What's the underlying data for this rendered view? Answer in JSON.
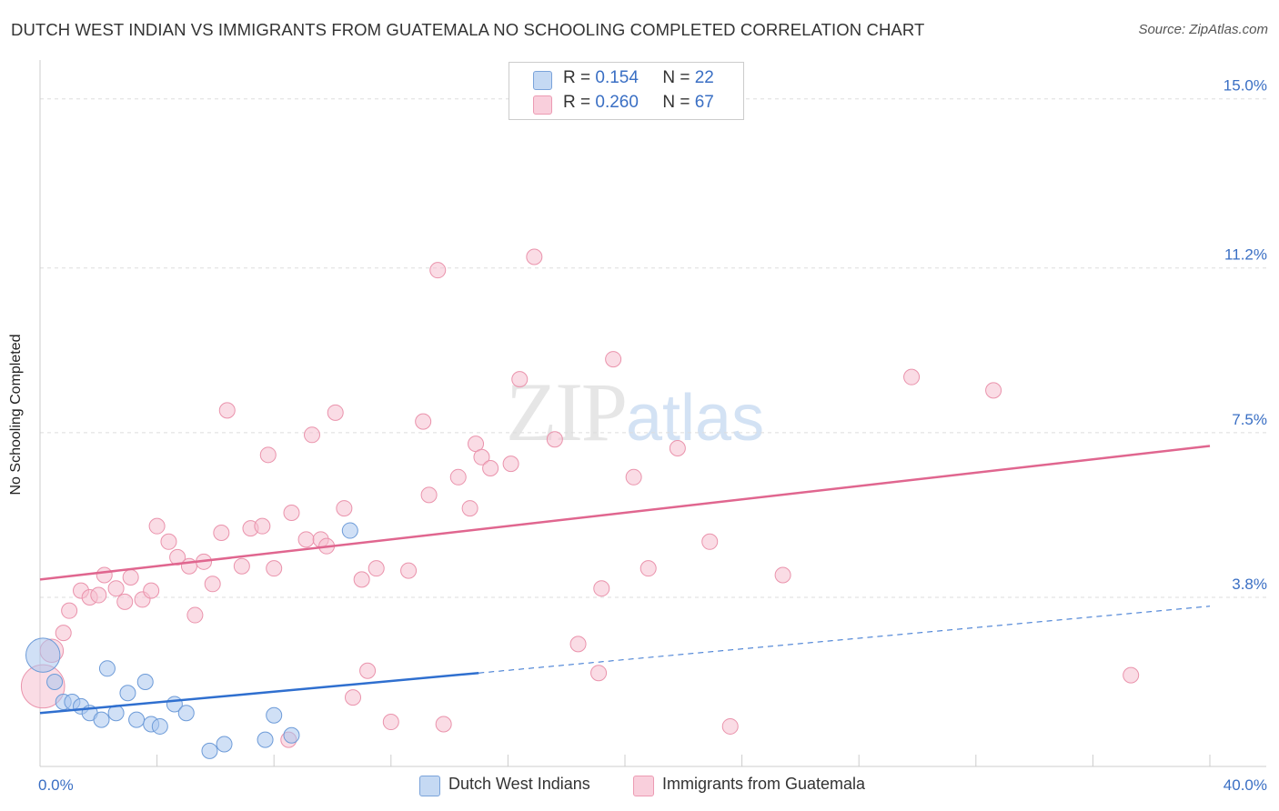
{
  "header": {
    "title": "DUTCH WEST INDIAN VS IMMIGRANTS FROM GUATEMALA NO SCHOOLING COMPLETED CORRELATION CHART",
    "source": "Source: ZipAtlas.com"
  },
  "watermark": {
    "zip": "ZIP",
    "atlas": "atlas"
  },
  "legend": {
    "r_label": "R =",
    "n_label": "N =",
    "series": [
      {
        "r": "0.154",
        "n": "22"
      },
      {
        "r": "0.260",
        "n": "67"
      }
    ]
  },
  "chart_data": {
    "type": "scatter",
    "title": "DUTCH WEST INDIAN VS IMMIGRANTS FROM GUATEMALA NO SCHOOLING COMPLETED CORRELATION CHART",
    "xlabel": "",
    "ylabel": "No Schooling Completed",
    "xlim": [
      0,
      40
    ],
    "ylim": [
      0,
      15.75
    ],
    "x_tick_labels": [
      "0.0%",
      "40.0%"
    ],
    "y_ticks": [
      3.8,
      7.5,
      11.2,
      15.0
    ],
    "y_tick_labels": [
      "3.8%",
      "7.5%",
      "11.2%",
      "15.0%"
    ],
    "colors": {
      "blue_fill": "#a9c7ee",
      "blue_stroke": "#6d9bd8",
      "blue_line": "#2f6fcf",
      "pink_fill": "#f6bfcf",
      "pink_stroke": "#ea93ac",
      "pink_line": "#e0668f",
      "grid": "#dddddd",
      "tick_label": "#3a6fc4"
    },
    "series": [
      {
        "name": "Dutch West Indians",
        "r": 0.154,
        "n": 22,
        "trend": {
          "x0": 0,
          "y0": 1.2,
          "x1": 15,
          "y1": 2.1,
          "dash_to_x": 40,
          "dash_to_y": 3.6
        },
        "points": [
          {
            "x": 0.1,
            "y": 2.5,
            "s": 2.2
          },
          {
            "x": 0.5,
            "y": 1.9,
            "s": 1
          },
          {
            "x": 0.8,
            "y": 1.45,
            "s": 1
          },
          {
            "x": 1.1,
            "y": 1.45,
            "s": 1
          },
          {
            "x": 1.4,
            "y": 1.35,
            "s": 1
          },
          {
            "x": 1.7,
            "y": 1.2,
            "s": 1
          },
          {
            "x": 2.1,
            "y": 1.05,
            "s": 1
          },
          {
            "x": 2.3,
            "y": 2.2,
            "s": 1
          },
          {
            "x": 2.6,
            "y": 1.2,
            "s": 1
          },
          {
            "x": 3.0,
            "y": 1.65,
            "s": 1
          },
          {
            "x": 3.3,
            "y": 1.05,
            "s": 1
          },
          {
            "x": 3.6,
            "y": 1.9,
            "s": 1
          },
          {
            "x": 3.8,
            "y": 0.95,
            "s": 1
          },
          {
            "x": 4.1,
            "y": 0.9,
            "s": 1
          },
          {
            "x": 4.6,
            "y": 1.4,
            "s": 1
          },
          {
            "x": 5.0,
            "y": 1.2,
            "s": 1
          },
          {
            "x": 5.8,
            "y": 0.35,
            "s": 1
          },
          {
            "x": 6.3,
            "y": 0.5,
            "s": 1
          },
          {
            "x": 7.7,
            "y": 0.6,
            "s": 1
          },
          {
            "x": 8.0,
            "y": 1.15,
            "s": 1
          },
          {
            "x": 8.6,
            "y": 0.7,
            "s": 1
          },
          {
            "x": 10.6,
            "y": 5.3,
            "s": 1
          }
        ]
      },
      {
        "name": "Immigrants from Guatemala",
        "r": 0.26,
        "n": 67,
        "trend": {
          "x0": 0,
          "y0": 4.2,
          "x1": 40,
          "y1": 7.2
        },
        "points": [
          {
            "x": 0.1,
            "y": 1.8,
            "s": 2.8
          },
          {
            "x": 0.4,
            "y": 2.6,
            "s": 1.5
          },
          {
            "x": 0.8,
            "y": 3.0,
            "s": 1
          },
          {
            "x": 1.0,
            "y": 3.5,
            "s": 1
          },
          {
            "x": 1.4,
            "y": 3.95,
            "s": 1
          },
          {
            "x": 1.7,
            "y": 3.8,
            "s": 1
          },
          {
            "x": 2.0,
            "y": 3.85,
            "s": 1
          },
          {
            "x": 2.2,
            "y": 4.3,
            "s": 1
          },
          {
            "x": 2.6,
            "y": 4.0,
            "s": 1
          },
          {
            "x": 2.9,
            "y": 3.7,
            "s": 1
          },
          {
            "x": 3.1,
            "y": 4.25,
            "s": 1
          },
          {
            "x": 3.5,
            "y": 3.75,
            "s": 1
          },
          {
            "x": 3.8,
            "y": 3.95,
            "s": 1
          },
          {
            "x": 4.0,
            "y": 5.4,
            "s": 1
          },
          {
            "x": 4.4,
            "y": 5.05,
            "s": 1
          },
          {
            "x": 4.7,
            "y": 4.7,
            "s": 1
          },
          {
            "x": 5.1,
            "y": 4.5,
            "s": 1
          },
          {
            "x": 5.3,
            "y": 3.4,
            "s": 1
          },
          {
            "x": 5.6,
            "y": 4.6,
            "s": 1
          },
          {
            "x": 5.9,
            "y": 4.1,
            "s": 1
          },
          {
            "x": 6.2,
            "y": 5.25,
            "s": 1
          },
          {
            "x": 6.4,
            "y": 8.0,
            "s": 1
          },
          {
            "x": 6.9,
            "y": 4.5,
            "s": 1
          },
          {
            "x": 7.2,
            "y": 5.35,
            "s": 1
          },
          {
            "x": 7.6,
            "y": 5.4,
            "s": 1
          },
          {
            "x": 7.8,
            "y": 7.0,
            "s": 1
          },
          {
            "x": 8.0,
            "y": 4.45,
            "s": 1
          },
          {
            "x": 8.5,
            "y": 0.6,
            "s": 1
          },
          {
            "x": 8.6,
            "y": 5.7,
            "s": 1
          },
          {
            "x": 9.1,
            "y": 5.1,
            "s": 1
          },
          {
            "x": 9.3,
            "y": 7.45,
            "s": 1
          },
          {
            "x": 9.6,
            "y": 5.1,
            "s": 1
          },
          {
            "x": 9.8,
            "y": 4.95,
            "s": 1
          },
          {
            "x": 10.1,
            "y": 7.95,
            "s": 1
          },
          {
            "x": 10.4,
            "y": 5.8,
            "s": 1
          },
          {
            "x": 10.7,
            "y": 1.55,
            "s": 1
          },
          {
            "x": 11.0,
            "y": 4.2,
            "s": 1
          },
          {
            "x": 11.2,
            "y": 2.15,
            "s": 1
          },
          {
            "x": 11.5,
            "y": 4.45,
            "s": 1
          },
          {
            "x": 12.0,
            "y": 1.0,
            "s": 1
          },
          {
            "x": 12.6,
            "y": 4.4,
            "s": 1
          },
          {
            "x": 13.1,
            "y": 7.75,
            "s": 1
          },
          {
            "x": 13.3,
            "y": 6.1,
            "s": 1
          },
          {
            "x": 13.6,
            "y": 11.15,
            "s": 1
          },
          {
            "x": 13.8,
            "y": 0.95,
            "s": 1
          },
          {
            "x": 14.3,
            "y": 6.5,
            "s": 1
          },
          {
            "x": 14.7,
            "y": 5.8,
            "s": 1
          },
          {
            "x": 14.9,
            "y": 7.25,
            "s": 1
          },
          {
            "x": 15.1,
            "y": 6.95,
            "s": 1
          },
          {
            "x": 15.4,
            "y": 6.7,
            "s": 1
          },
          {
            "x": 16.1,
            "y": 6.8,
            "s": 1
          },
          {
            "x": 16.4,
            "y": 8.7,
            "s": 1
          },
          {
            "x": 16.9,
            "y": 11.45,
            "s": 1
          },
          {
            "x": 17.6,
            "y": 7.35,
            "s": 1
          },
          {
            "x": 18.4,
            "y": 2.75,
            "s": 1
          },
          {
            "x": 19.1,
            "y": 2.1,
            "s": 1
          },
          {
            "x": 19.2,
            "y": 4.0,
            "s": 1
          },
          {
            "x": 19.6,
            "y": 9.15,
            "s": 1
          },
          {
            "x": 20.3,
            "y": 6.5,
            "s": 1
          },
          {
            "x": 20.8,
            "y": 4.45,
            "s": 1
          },
          {
            "x": 21.8,
            "y": 7.15,
            "s": 1
          },
          {
            "x": 22.9,
            "y": 5.05,
            "s": 1
          },
          {
            "x": 23.6,
            "y": 0.9,
            "s": 1
          },
          {
            "x": 25.4,
            "y": 4.3,
            "s": 1
          },
          {
            "x": 29.8,
            "y": 8.75,
            "s": 1
          },
          {
            "x": 32.6,
            "y": 8.45,
            "s": 1
          },
          {
            "x": 37.3,
            "y": 2.05,
            "s": 1
          }
        ]
      }
    ]
  }
}
